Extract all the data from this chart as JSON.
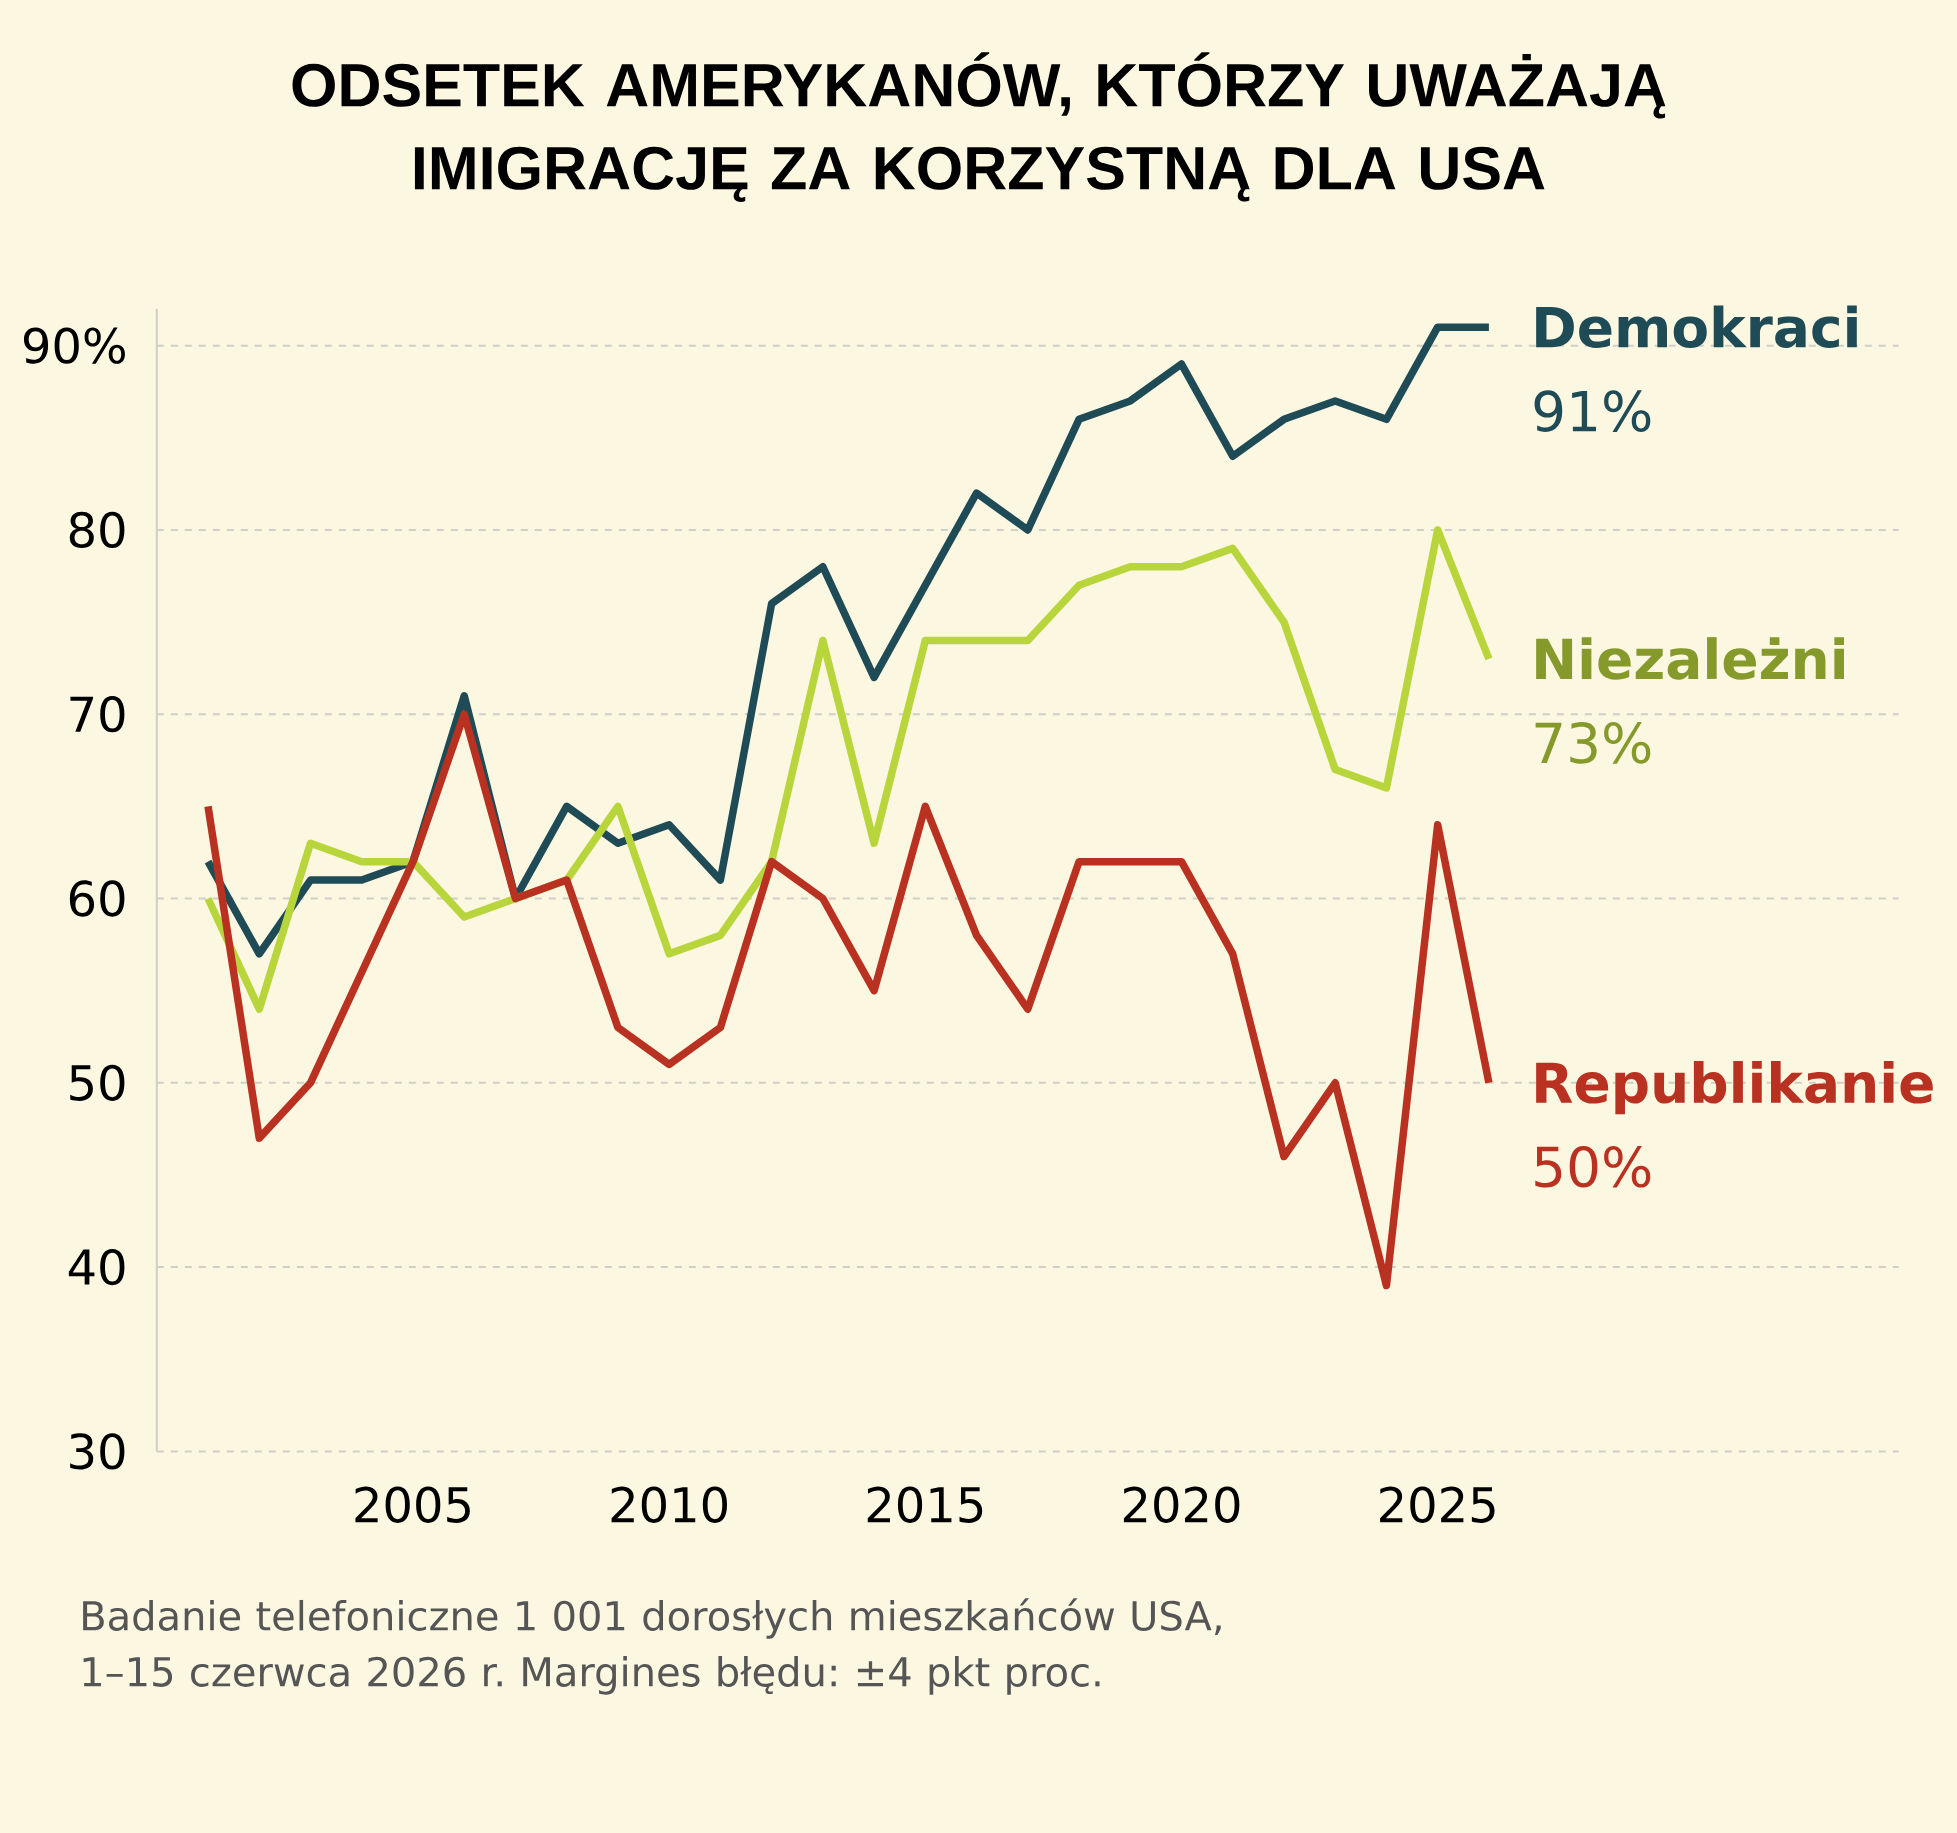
{
  "chart_data": {
    "type": "line",
    "title": "ODSETEK AMERYKANÓW, KTÓRZY UWAŻAJĄ IMIGRACJĘ ZA KORZYSTNĄ DLA USA",
    "x": [
      2001,
      2002,
      2003,
      2004,
      2005,
      2006,
      2007,
      2008,
      2009,
      2010,
      2011,
      2012,
      2013,
      2014,
      2015,
      2016,
      2017,
      2018,
      2019,
      2020,
      2021,
      2022,
      2023,
      2024,
      2025,
      2026
    ],
    "xlim": [
      2000,
      2034
    ],
    "xticks": [
      2005,
      2010,
      2015,
      2020,
      2025
    ],
    "ylim": [
      30,
      92
    ],
    "yticks": [
      30,
      40,
      50,
      60,
      70,
      80,
      {
        "value": 90,
        "label": "90%"
      }
    ],
    "grid": "y",
    "series": [
      {
        "name": "Demokraci",
        "color": "#1f4b57",
        "values": [
          62,
          57,
          61,
          61,
          62,
          71,
          60,
          65,
          63,
          64,
          61,
          76,
          78,
          72,
          77,
          82,
          80,
          86,
          87,
          89,
          84,
          86,
          87,
          86,
          91,
          91
        ],
        "value_labels": [
          null,
          null,
          null,
          null,
          null,
          null,
          null,
          null,
          null,
          null,
          null,
          null,
          null,
          null,
          null,
          null,
          null,
          null,
          null,
          null,
          null,
          null,
          null,
          null,
          null,
          "91%"
        ]
      },
      {
        "name": "Niezależni",
        "color": "#b8d63c",
        "values": [
          60,
          54,
          63,
          62,
          62,
          59,
          60,
          61,
          65,
          57,
          58,
          62,
          74,
          63,
          74,
          74,
          74,
          77,
          78,
          78,
          79,
          75,
          67,
          66,
          80,
          73
        ],
        "value_labels": [
          null,
          null,
          null,
          null,
          null,
          null,
          null,
          null,
          null,
          null,
          null,
          null,
          null,
          null,
          null,
          null,
          null,
          null,
          null,
          null,
          null,
          null,
          null,
          null,
          null,
          "73%"
        ]
      },
      {
        "name": "Republikanie",
        "color": "#b93120",
        "values": [
          65,
          47,
          50,
          56,
          62,
          70,
          60,
          61,
          53,
          51,
          53,
          62,
          60,
          55,
          65,
          58,
          54,
          62,
          62,
          62,
          57,
          46,
          50,
          39,
          64,
          50
        ],
        "value_labels": [
          null,
          null,
          null,
          null,
          null,
          null,
          null,
          null,
          null,
          null,
          null,
          null,
          null,
          null,
          null,
          null,
          null,
          null,
          null,
          null,
          null,
          null,
          null,
          null,
          null,
          "50%"
        ]
      }
    ],
    "annotations": [
      "Badanie telefoniczne 1 001 dorosłych mieszkańców USA, 1–15 czerwca 2026 r. Margines błędu: ±4 pkt proc."
    ]
  }
}
